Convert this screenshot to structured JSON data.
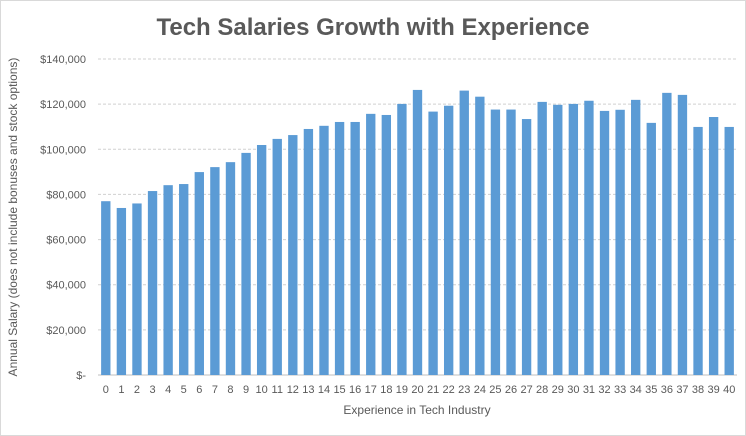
{
  "chart_data": {
    "type": "bar",
    "title": "Tech Salaries Growth with Experience",
    "xlabel": "Experience in Tech Industry",
    "ylabel": "Annual Salary (does not include bonuses and stock options)",
    "ylim": [
      0,
      140000
    ],
    "yticks": [
      0,
      20000,
      40000,
      60000,
      80000,
      100000,
      120000,
      140000
    ],
    "ytick_labels": [
      "$-",
      "$20,000",
      "$40,000",
      "$60,000",
      "$80,000",
      "$100,000",
      "$120,000",
      "$140,000"
    ],
    "grid": true,
    "bar_color": "#5b9bd5",
    "categories": [
      "0",
      "1",
      "2",
      "3",
      "4",
      "5",
      "6",
      "7",
      "8",
      "9",
      "10",
      "11",
      "12",
      "13",
      "14",
      "15",
      "16",
      "17",
      "18",
      "19",
      "20",
      "21",
      "22",
      "23",
      "24",
      "25",
      "26",
      "27",
      "28",
      "29",
      "30",
      "31",
      "32",
      "33",
      "34",
      "35",
      "36",
      "37",
      "38",
      "39",
      "40"
    ],
    "values": [
      77000,
      74000,
      76000,
      81500,
      84100,
      84600,
      89900,
      92100,
      94300,
      98400,
      101900,
      104600,
      106300,
      109000,
      110400,
      112100,
      112100,
      115700,
      115200,
      120100,
      126300,
      116700,
      119300,
      126000,
      123300,
      117600,
      117600,
      113400,
      121000,
      119700,
      120100,
      121500,
      117000,
      117500,
      121900,
      111700,
      125000,
      124100,
      109900,
      114300,
      109900
    ]
  }
}
